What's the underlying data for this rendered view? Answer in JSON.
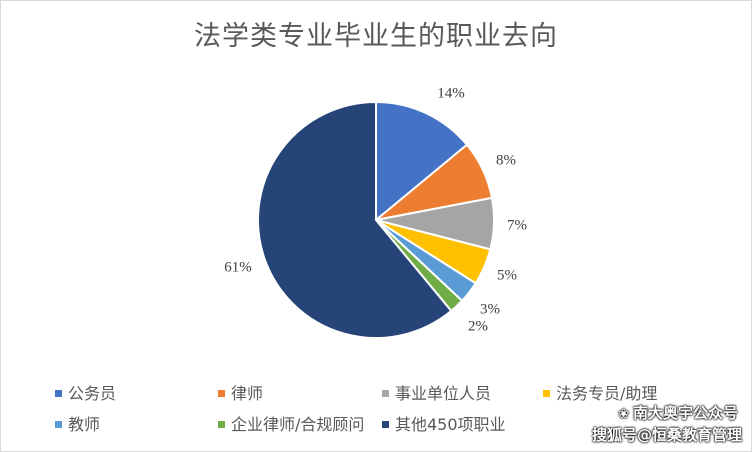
{
  "chart_data": {
    "type": "pie",
    "title": "法学类专业毕业生的职业去向",
    "legend_position": "bottom",
    "slices": [
      {
        "name": "公务员",
        "value": 14,
        "label": "14%",
        "color": "#4472C4"
      },
      {
        "name": "律师",
        "value": 8,
        "label": "8%",
        "color": "#ED7D31"
      },
      {
        "name": "事业单位人员",
        "value": 7,
        "label": "7%",
        "color": "#A5A5A5"
      },
      {
        "name": "法务专员/助理",
        "value": 5,
        "label": "5%",
        "color": "#FFC000"
      },
      {
        "name": "教师",
        "value": 3,
        "label": "3%",
        "color": "#5B9BD5"
      },
      {
        "name": "企业律师/合规顾问",
        "value": 2,
        "label": "2%",
        "color": "#70AD47"
      },
      {
        "name": "其他450项职业",
        "value": 61,
        "label": "61%",
        "color": "#264478"
      }
    ]
  },
  "watermark": {
    "line1": "南大奥宇公众号",
    "line2": "搜狐号@恒桑教育管理"
  }
}
